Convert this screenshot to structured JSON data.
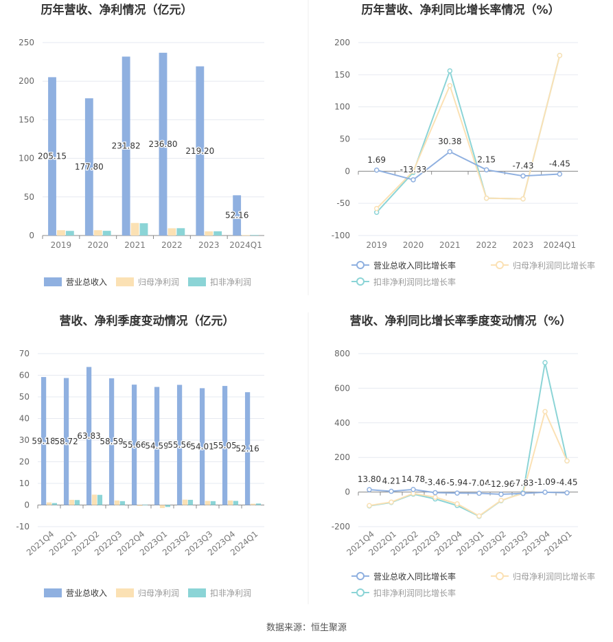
{
  "source_text": "数据来源：恒生聚源",
  "colors": {
    "revenue": "#8fb0e0",
    "netprofit": "#fbe1b4",
    "deducted": "#8bd4d6",
    "grid": "#e6e9f0",
    "axis": "#888888",
    "divider": "#eeeeee"
  },
  "chart_data": [
    {
      "type": "bar",
      "title": "历年营收、净利情况（亿元）",
      "categories": [
        "2019",
        "2020",
        "2021",
        "2022",
        "2023",
        "2024Q1"
      ],
      "yticks": [
        0,
        50,
        100,
        150,
        200,
        250
      ],
      "ylim": [
        0,
        250
      ],
      "series": [
        {
          "name": "营业总收入",
          "values": [
            205.15,
            177.8,
            231.82,
            236.8,
            219.2,
            52.16
          ],
          "labels": [
            "205.15",
            "177.80",
            "231.82",
            "236.80",
            "219.20",
            "52.16"
          ]
        },
        {
          "name": "归母净利润",
          "values": [
            6.9,
            6.9,
            16.3,
            9.4,
            5.4,
            0.6
          ]
        },
        {
          "name": "扣非净利润",
          "values": [
            6.0,
            6.1,
            15.9,
            9.5,
            5.5,
            0.7
          ]
        }
      ],
      "legend_position": "bottom-left"
    },
    {
      "type": "line",
      "title": "历年营收、净利同比增长率情况（%）",
      "categories": [
        "2019",
        "2020",
        "2021",
        "2022",
        "2023",
        "2024Q1"
      ],
      "yticks": [
        -100,
        -50,
        0,
        50,
        100,
        150,
        200
      ],
      "ylim": [
        -100,
        200
      ],
      "series": [
        {
          "name": "营业总收入同比增长率",
          "values": [
            1.69,
            -13.33,
            30.38,
            2.15,
            -7.43,
            -4.45
          ],
          "labels": [
            "1.69",
            "-13.33",
            "30.38",
            "2.15",
            "-7.43",
            "-4.45"
          ]
        },
        {
          "name": "归母净利润同比增长率",
          "values": [
            -58,
            0,
            133,
            -42,
            -43,
            180
          ]
        },
        {
          "name": "扣非净利润同比增长率",
          "values": [
            -64,
            -2,
            156,
            -42,
            -43,
            180
          ]
        }
      ],
      "legend_position": "bottom-left"
    },
    {
      "type": "bar",
      "title": "营收、净利季度变动情况（亿元）",
      "categories": [
        "2021Q4",
        "2022Q1",
        "2022Q2",
        "2022Q3",
        "2022Q4",
        "2023Q1",
        "2023Q2",
        "2023Q3",
        "2023Q4",
        "2024Q1"
      ],
      "yticks": [
        -10,
        0,
        10,
        20,
        30,
        40,
        50,
        60,
        70
      ],
      "ylim": [
        -10,
        70
      ],
      "series": [
        {
          "name": "营业总收入",
          "values": [
            59.18,
            58.72,
            63.83,
            58.59,
            55.66,
            54.59,
            55.56,
            54.01,
            55.05,
            52.16
          ],
          "labels": [
            "59.18",
            "58.72",
            "63.83",
            "58.59",
            "55.66",
            "54.59",
            "55.56",
            "54.01",
            "55.05",
            "52.16"
          ]
        },
        {
          "name": "归母净利润",
          "values": [
            1.2,
            2.4,
            4.8,
            2.1,
            -0.4,
            -1.4,
            2.5,
            1.9,
            2.1,
            0.6
          ]
        },
        {
          "name": "扣非净利润",
          "values": [
            0.9,
            2.3,
            4.7,
            1.8,
            0.2,
            -0.9,
            2.4,
            1.8,
            1.9,
            0.7
          ]
        }
      ],
      "legend_position": "bottom-left"
    },
    {
      "type": "line",
      "title": "营收、净利同比增长率季度变动情况（%）",
      "categories": [
        "2021Q4",
        "2022Q1",
        "2022Q2",
        "2022Q3",
        "2022Q4",
        "2023Q1",
        "2023Q2",
        "2023Q3",
        "2023Q4",
        "2024Q1"
      ],
      "yticks": [
        -200,
        0,
        200,
        400,
        600,
        800
      ],
      "ylim": [
        -200,
        800
      ],
      "series": [
        {
          "name": "营业总收入同比增长率",
          "values": [
            13.8,
            4.21,
            14.78,
            -3.46,
            -5.94,
            -7.04,
            -12.96,
            -7.83,
            -1.09,
            -4.45
          ],
          "labels": [
            "13.80",
            "4.21",
            "14.78",
            "-3.46",
            "-5.94",
            "-7.04",
            "-12.96",
            "-7.83",
            "-1.09",
            "-4.45"
          ]
        },
        {
          "name": "归母净利润同比增长率",
          "values": [
            -78,
            -58,
            -8,
            -30,
            -68,
            -138,
            -48,
            -8,
            465,
            180
          ]
        },
        {
          "name": "扣非净利润同比增长率",
          "values": [
            -80,
            -60,
            -12,
            -40,
            -78,
            -140,
            -50,
            -4,
            748,
            180
          ]
        }
      ],
      "legend_position": "bottom-left"
    }
  ]
}
